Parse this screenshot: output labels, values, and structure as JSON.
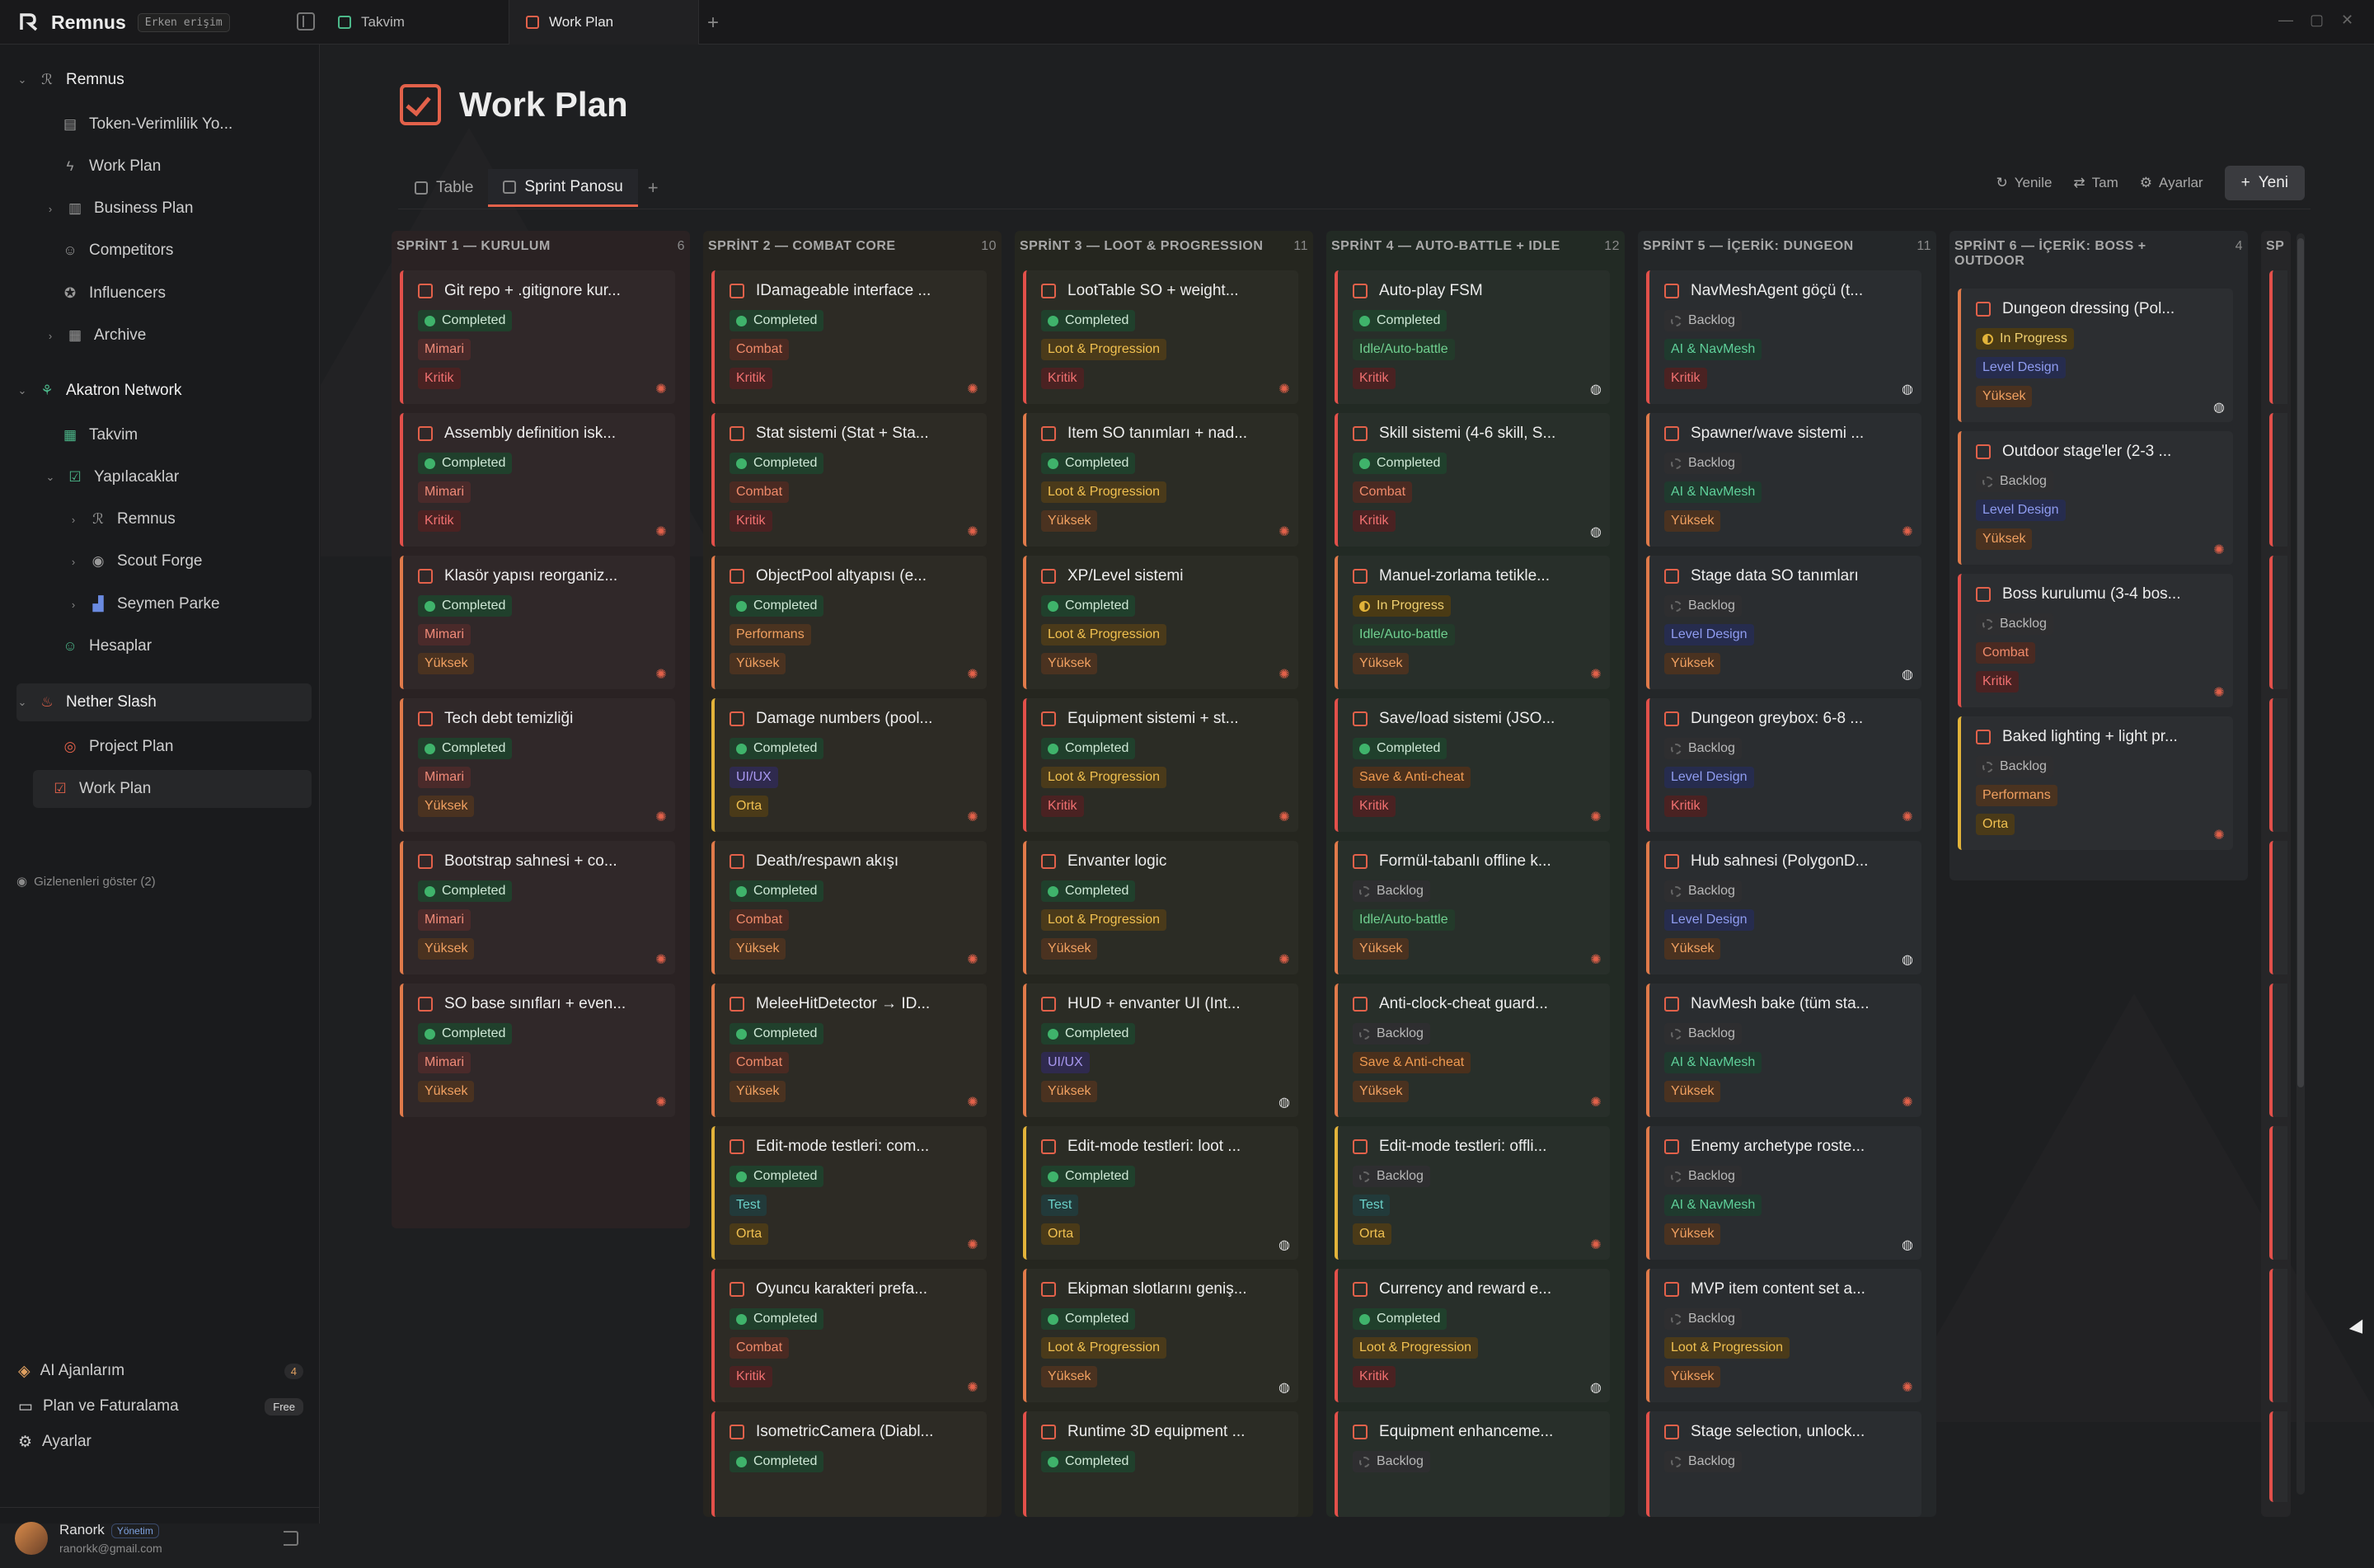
{
  "app": {
    "name": "Remnus",
    "badge": "Erken erişim"
  },
  "tabs": [
    {
      "label": "Takvim"
    },
    {
      "label": "Work Plan"
    }
  ],
  "sidebar": {
    "workspaces": [
      {
        "label": "Remnus",
        "children": [
          "Token-Verimlilik Yo...",
          "Work Plan",
          "Business Plan",
          "Competitors",
          "Influencers",
          "Archive"
        ]
      },
      {
        "label": "Akatron Network",
        "children": [
          "Takvim",
          "Yapılacaklar",
          "Remnus",
          "Scout Forge",
          "Seymen Parke",
          "Hesaplar"
        ]
      },
      {
        "label": "Nether Slash",
        "children": [
          "Project Plan",
          "Work Plan"
        ]
      }
    ],
    "hidden_toggle": "Gizlenenleri göster (2)",
    "footer": {
      "ai_agents": "AI Ajanlarım",
      "ai_count": "4",
      "plan": "Plan ve Faturalama",
      "plan_badge": "Free",
      "settings": "Ayarlar"
    },
    "user": {
      "name": "Ranork",
      "role": "Yönetim",
      "email": "ranorkk@gmail.com"
    }
  },
  "page": {
    "title": "Work Plan",
    "views": [
      {
        "label": "Table"
      },
      {
        "label": "Sprint Panosu"
      }
    ],
    "actions": {
      "refresh": "Yenile",
      "full": "Tam",
      "settings": "Ayarlar",
      "new": "Yeni"
    }
  },
  "colors": {
    "completed": "#3fb36b",
    "in_progress": "#e2b33a",
    "backlog": "#777777",
    "accent": "#e2614a"
  },
  "board": {
    "columns": [
      {
        "title": "SPRİNT 1 — KURULUM",
        "count": "6",
        "cards": [
          {
            "title": "Git repo + .gitignore kur...",
            "status": "Completed",
            "category": "Mimari",
            "priority": "Kritik"
          },
          {
            "title": "Assembly definition isk...",
            "status": "Completed",
            "category": "Mimari",
            "priority": "Kritik"
          },
          {
            "title": "Klasör yapısı reorganiz...",
            "status": "Completed",
            "category": "Mimari",
            "priority": "Yüksek"
          },
          {
            "title": "Tech debt temizliği",
            "status": "Completed",
            "category": "Mimari",
            "priority": "Yüksek"
          },
          {
            "title": "Bootstrap sahnesi + co...",
            "status": "Completed",
            "category": "Mimari",
            "priority": "Yüksek"
          },
          {
            "title": "SO base sınıfları + even...",
            "status": "Completed",
            "category": "Mimari",
            "priority": "Yüksek"
          }
        ]
      },
      {
        "title": "SPRİNT 2 — COMBAT CORE",
        "count": "10",
        "cards": [
          {
            "title": "IDamageable interface ...",
            "status": "Completed",
            "category": "Combat",
            "priority": "Kritik"
          },
          {
            "title": "Stat sistemi (Stat + Sta...",
            "status": "Completed",
            "category": "Combat",
            "priority": "Kritik"
          },
          {
            "title": "ObjectPool altyapısı (e...",
            "status": "Completed",
            "category": "Performans",
            "priority": "Yüksek"
          },
          {
            "title": "Damage numbers (pool...",
            "status": "Completed",
            "category": "UI/UX",
            "priority": "Orta"
          },
          {
            "title": "Death/respawn akışı",
            "status": "Completed",
            "category": "Combat",
            "priority": "Yüksek"
          },
          {
            "title": "MeleeHitDetector → ID...",
            "status": "Completed",
            "category": "Combat",
            "priority": "Yüksek"
          },
          {
            "title": "Edit-mode testleri: com...",
            "status": "Completed",
            "category": "Test",
            "priority": "Orta"
          },
          {
            "title": "Oyuncu karakteri prefa...",
            "status": "Completed",
            "category": "Combat",
            "priority": "Kritik"
          },
          {
            "title": "IsometricCamera (Diabl...",
            "status": "Completed",
            "category": "",
            "priority": ""
          }
        ]
      },
      {
        "title": "SPRİNT 3 — LOOT & PROGRESSION",
        "count": "11",
        "cards": [
          {
            "title": "LootTable SO + weight...",
            "status": "Completed",
            "category": "Loot & Progression",
            "priority": "Kritik"
          },
          {
            "title": "Item SO tanımları + nad...",
            "status": "Completed",
            "category": "Loot & Progression",
            "priority": "Yüksek"
          },
          {
            "title": "XP/Level sistemi",
            "status": "Completed",
            "category": "Loot & Progression",
            "priority": "Yüksek"
          },
          {
            "title": "Equipment sistemi + st...",
            "status": "Completed",
            "category": "Loot & Progression",
            "priority": "Kritik"
          },
          {
            "title": "Envanter logic",
            "status": "Completed",
            "category": "Loot & Progression",
            "priority": "Yüksek"
          },
          {
            "title": "HUD + envanter UI (Int...",
            "status": "Completed",
            "category": "UI/UX",
            "priority": "Yüksek"
          },
          {
            "title": "Edit-mode testleri: loot ...",
            "status": "Completed",
            "category": "Test",
            "priority": "Orta"
          },
          {
            "title": "Ekipman slotlarını geniş...",
            "status": "Completed",
            "category": "Loot & Progression",
            "priority": "Yüksek"
          },
          {
            "title": "Runtime 3D equipment ...",
            "status": "Completed",
            "category": "",
            "priority": ""
          }
        ]
      },
      {
        "title": "SPRİNT 4 — AUTO-BATTLE + IDLE",
        "count": "12",
        "cards": [
          {
            "title": "Auto-play FSM",
            "status": "Completed",
            "category": "Idle/Auto-battle",
            "priority": "Kritik"
          },
          {
            "title": "Skill sistemi (4-6 skill, S...",
            "status": "Completed",
            "category": "Combat",
            "priority": "Kritik"
          },
          {
            "title": "Manuel-zorlama tetikle...",
            "status": "In Progress",
            "category": "Idle/Auto-battle",
            "priority": "Yüksek"
          },
          {
            "title": "Save/load sistemi (JSO...",
            "status": "Completed",
            "category": "Save & Anti-cheat",
            "priority": "Kritik"
          },
          {
            "title": "Formül-tabanlı offline k...",
            "status": "Backlog",
            "category": "Idle/Auto-battle",
            "priority": "Yüksek"
          },
          {
            "title": "Anti-clock-cheat guard...",
            "status": "Backlog",
            "category": "Save & Anti-cheat",
            "priority": "Yüksek"
          },
          {
            "title": "Edit-mode testleri: offli...",
            "status": "Backlog",
            "category": "Test",
            "priority": "Orta"
          },
          {
            "title": "Currency and reward e...",
            "status": "Completed",
            "category": "Loot & Progression",
            "priority": "Kritik"
          },
          {
            "title": "Equipment enhanceme...",
            "status": "Backlog",
            "category": "",
            "priority": ""
          }
        ]
      },
      {
        "title": "SPRİNT 5 — İÇERİK: DUNGEON",
        "count": "11",
        "cards": [
          {
            "title": "NavMeshAgent göçü (t...",
            "status": "Backlog",
            "category": "AI & NavMesh",
            "priority": "Kritik"
          },
          {
            "title": "Spawner/wave sistemi ...",
            "status": "Backlog",
            "category": "AI & NavMesh",
            "priority": "Yüksek"
          },
          {
            "title": "Stage data SO tanımları",
            "status": "Backlog",
            "category": "Level Design",
            "priority": "Yüksek"
          },
          {
            "title": "Dungeon greybox: 6-8 ...",
            "status": "Backlog",
            "category": "Level Design",
            "priority": "Kritik"
          },
          {
            "title": "Hub sahnesi (PolygonD...",
            "status": "Backlog",
            "category": "Level Design",
            "priority": "Yüksek"
          },
          {
            "title": "NavMesh bake (tüm sta...",
            "status": "Backlog",
            "category": "AI & NavMesh",
            "priority": "Yüksek"
          },
          {
            "title": "Enemy archetype roste...",
            "status": "Backlog",
            "category": "AI & NavMesh",
            "priority": "Yüksek"
          },
          {
            "title": "MVP item content set a...",
            "status": "Backlog",
            "category": "Loot & Progression",
            "priority": "Yüksek"
          },
          {
            "title": "Stage selection, unlock...",
            "status": "Backlog",
            "category": "",
            "priority": ""
          }
        ]
      },
      {
        "title": "SPRİNT 6 — İÇERİK: BOSS + OUTDOOR",
        "count": "4",
        "cards": [
          {
            "title": "Dungeon dressing (Pol...",
            "status": "In Progress",
            "category": "Level Design",
            "priority": "Yüksek"
          },
          {
            "title": "Outdoor stage'ler (2-3 ...",
            "status": "Backlog",
            "category": "Level Design",
            "priority": "Yüksek"
          },
          {
            "title": "Boss kurulumu (3-4 bos...",
            "status": "Backlog",
            "category": "Combat",
            "priority": "Kritik"
          },
          {
            "title": "Baked lighting + light pr...",
            "status": "Backlog",
            "category": "Performans",
            "priority": "Orta"
          }
        ]
      }
    ],
    "next_column_peek": "SP"
  }
}
